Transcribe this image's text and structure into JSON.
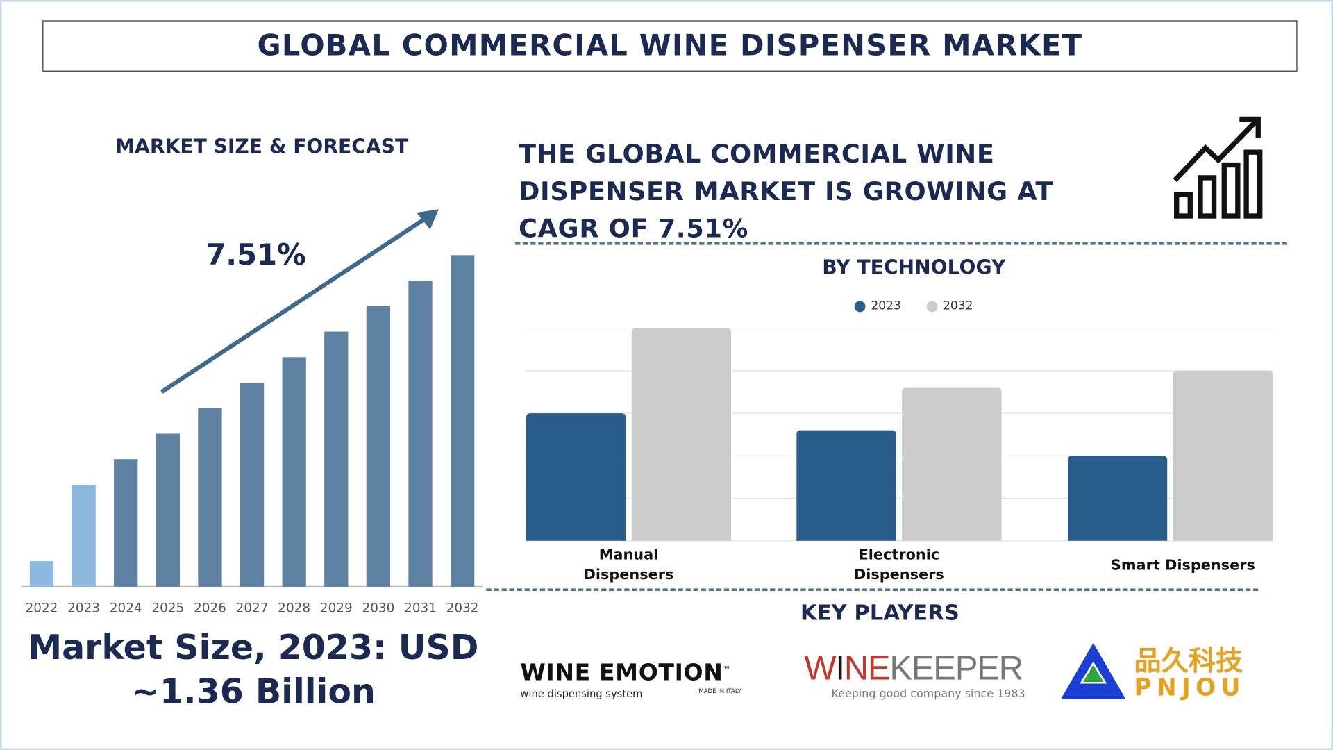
{
  "title": "GLOBAL COMMERCIAL WINE DISPENSER MARKET",
  "market_size_title": "MARKET SIZE & FORECAST",
  "cagr_label": "7.51%",
  "headline": "THE GLOBAL COMMERCIAL WINE DISPENSER MARKET IS GROWING AT CAGR OF 7.51%",
  "market_size_text_line1": "Market Size, 2023: USD",
  "market_size_text_line2": "~1.36 Billion",
  "key_players_title": "KEY PLAYERS",
  "icons": [
    "growth-chart-icon",
    "trend-arrow-icon"
  ],
  "logos": {
    "winemotion": {
      "name": "WINE EMOTION",
      "tm": "™",
      "tagline": "wine dispensing system",
      "sub": "MADE IN ITALY"
    },
    "winekeeper": {
      "name_w": "W",
      "name_i": "I",
      "name_ne": "NE",
      "name_rest": "KEEPER",
      "tagline": "Keeping good company since 1983"
    },
    "pnjou": {
      "cn": "品久科技",
      "en": "PNJOU"
    }
  },
  "colors": {
    "navy": "#1b2a52",
    "bar_dark": "#5f82a3",
    "bar_light": "#8db9df",
    "series_2023": "#285c8a",
    "series_2032": "#cccccc",
    "dash": "#4f7690"
  },
  "chart_data": [
    {
      "type": "bar",
      "title": "MARKET SIZE & FORECAST",
      "categories": [
        "2022",
        "2023",
        "2024",
        "2025",
        "2026",
        "2027",
        "2028",
        "2029",
        "2030",
        "2031",
        "2032"
      ],
      "values": [
        1,
        4,
        5,
        6,
        7,
        8,
        9,
        10,
        11,
        12,
        13
      ],
      "highlighted": [
        "2022",
        "2023"
      ],
      "grid": false,
      "annotation": "7.51%"
    },
    {
      "type": "bar",
      "title": "BY TECHNOLOGY",
      "categories": [
        "Manual Dispensers",
        "Electronic Dispensers",
        "Smart Dispensers"
      ],
      "series": [
        {
          "name": "2023",
          "values": [
            3,
            2.6,
            2
          ]
        },
        {
          "name": "2032",
          "values": [
            5,
            3.6,
            4
          ]
        }
      ],
      "ylim": [
        0,
        5
      ],
      "grid": true,
      "legend": "top"
    }
  ]
}
